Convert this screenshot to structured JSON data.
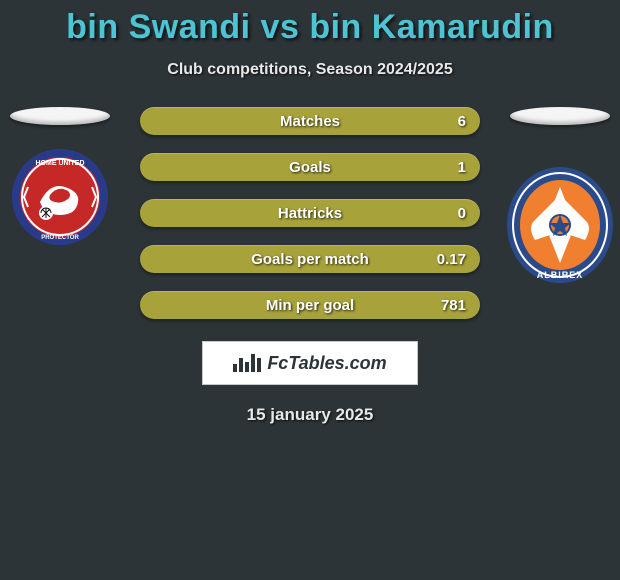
{
  "title": "bin Swandi vs bin Kamarudin",
  "subtitle": "Club competitions, Season 2024/2025",
  "date": "15 january 2025",
  "branding": "FcTables.com",
  "bar_color": "#a8a23a",
  "title_color": "#4cc4d4",
  "background_color": "#2c3437",
  "stats": [
    {
      "label": "Matches",
      "value": "6"
    },
    {
      "label": "Goals",
      "value": "1"
    },
    {
      "label": "Hattricks",
      "value": "0"
    },
    {
      "label": "Goals per match",
      "value": "0.17"
    },
    {
      "label": "Min per goal",
      "value": "781"
    }
  ],
  "left_team": {
    "name": "Home United",
    "crest_colors": {
      "outer": "#2a3a8a",
      "inner": "#c62828",
      "accent": "#ffffff"
    }
  },
  "right_team": {
    "name": "Albirex",
    "crest_colors": {
      "outer": "#2a4a8a",
      "mid": "#f08030",
      "accent": "#ffffff"
    }
  }
}
